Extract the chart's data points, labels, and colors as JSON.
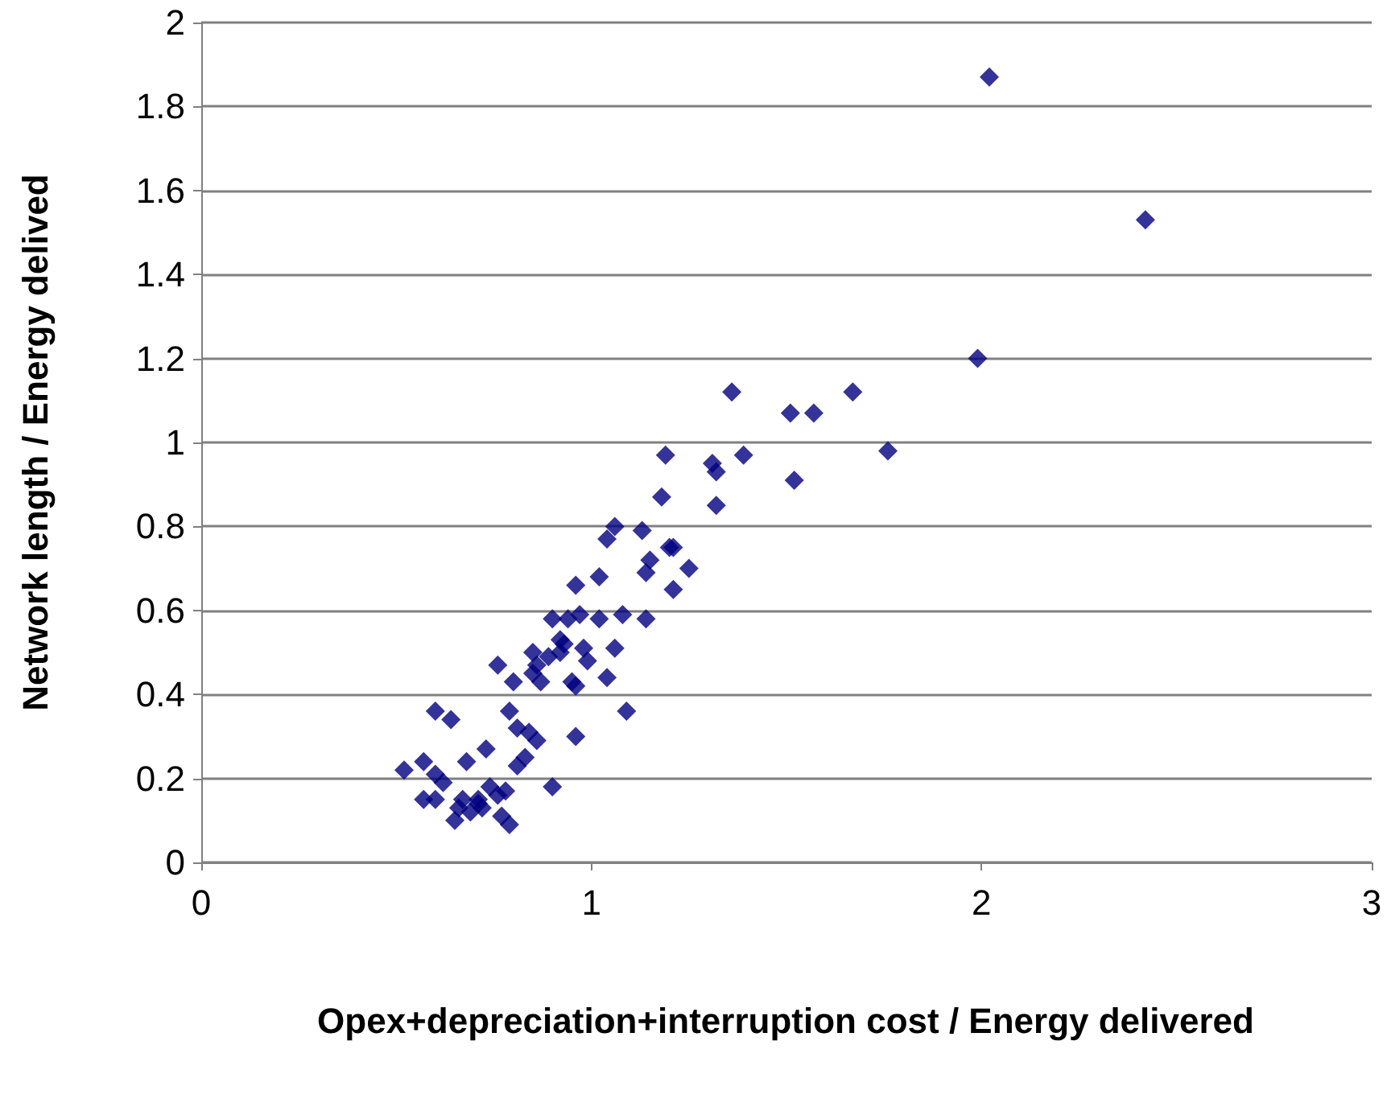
{
  "chart_data": {
    "type": "scatter",
    "xlabel": "Opex+depreciation+interruption cost / Energy delivered",
    "ylabel": "Network length / Energy delived",
    "xlim": [
      0,
      3
    ],
    "xticks": [
      0,
      1,
      2,
      3
    ],
    "ylim": [
      0,
      2
    ],
    "yticks": [
      0,
      0.2,
      0.4,
      0.6,
      0.8,
      1,
      1.2,
      1.4,
      1.6,
      1.8,
      2
    ],
    "grid": "y",
    "marker": "diamond",
    "series": [
      {
        "color": "#000080",
        "x": [
          2.02,
          2.42,
          1.99,
          1.36,
          1.67,
          1.51,
          1.57,
          1.19,
          1.76,
          1.39,
          1.31,
          1.32,
          1.52,
          1.32,
          1.18,
          1.06,
          1.04,
          1.13,
          1.2,
          1.21,
          1.15,
          1.14,
          1.25,
          1.21,
          0.96,
          1.02,
          1.14,
          1.08,
          1.02,
          0.97,
          0.94,
          0.9,
          0.98,
          1.06,
          0.92,
          0.93,
          0.92,
          0.99,
          0.89,
          0.85,
          0.86,
          0.85,
          0.87,
          0.95,
          0.96,
          1.04,
          0.76,
          0.8,
          1.09,
          0.79,
          0.81,
          0.84,
          0.86,
          0.96,
          0.6,
          0.64,
          0.73,
          0.83,
          0.81,
          0.68,
          0.57,
          0.52,
          0.6,
          0.62,
          0.9,
          0.57,
          0.6,
          0.67,
          0.71,
          0.74,
          0.76,
          0.78,
          0.66,
          0.72,
          0.69,
          0.65,
          0.77,
          0.79,
          0.71
        ],
        "values": [
          1.87,
          1.53,
          1.2,
          1.12,
          1.12,
          1.07,
          1.07,
          0.97,
          0.98,
          0.97,
          0.95,
          0.93,
          0.91,
          0.85,
          0.87,
          0.8,
          0.77,
          0.79,
          0.75,
          0.75,
          0.72,
          0.69,
          0.7,
          0.65,
          0.66,
          0.68,
          0.58,
          0.59,
          0.58,
          0.59,
          0.58,
          0.58,
          0.51,
          0.51,
          0.53,
          0.52,
          0.5,
          0.48,
          0.49,
          0.5,
          0.47,
          0.45,
          0.43,
          0.43,
          0.42,
          0.44,
          0.47,
          0.43,
          0.36,
          0.36,
          0.32,
          0.31,
          0.29,
          0.3,
          0.36,
          0.34,
          0.27,
          0.25,
          0.23,
          0.24,
          0.24,
          0.22,
          0.21,
          0.19,
          0.18,
          0.15,
          0.15,
          0.15,
          0.15,
          0.18,
          0.16,
          0.17,
          0.13,
          0.13,
          0.12,
          0.1,
          0.11,
          0.09,
          0.14
        ]
      }
    ]
  }
}
